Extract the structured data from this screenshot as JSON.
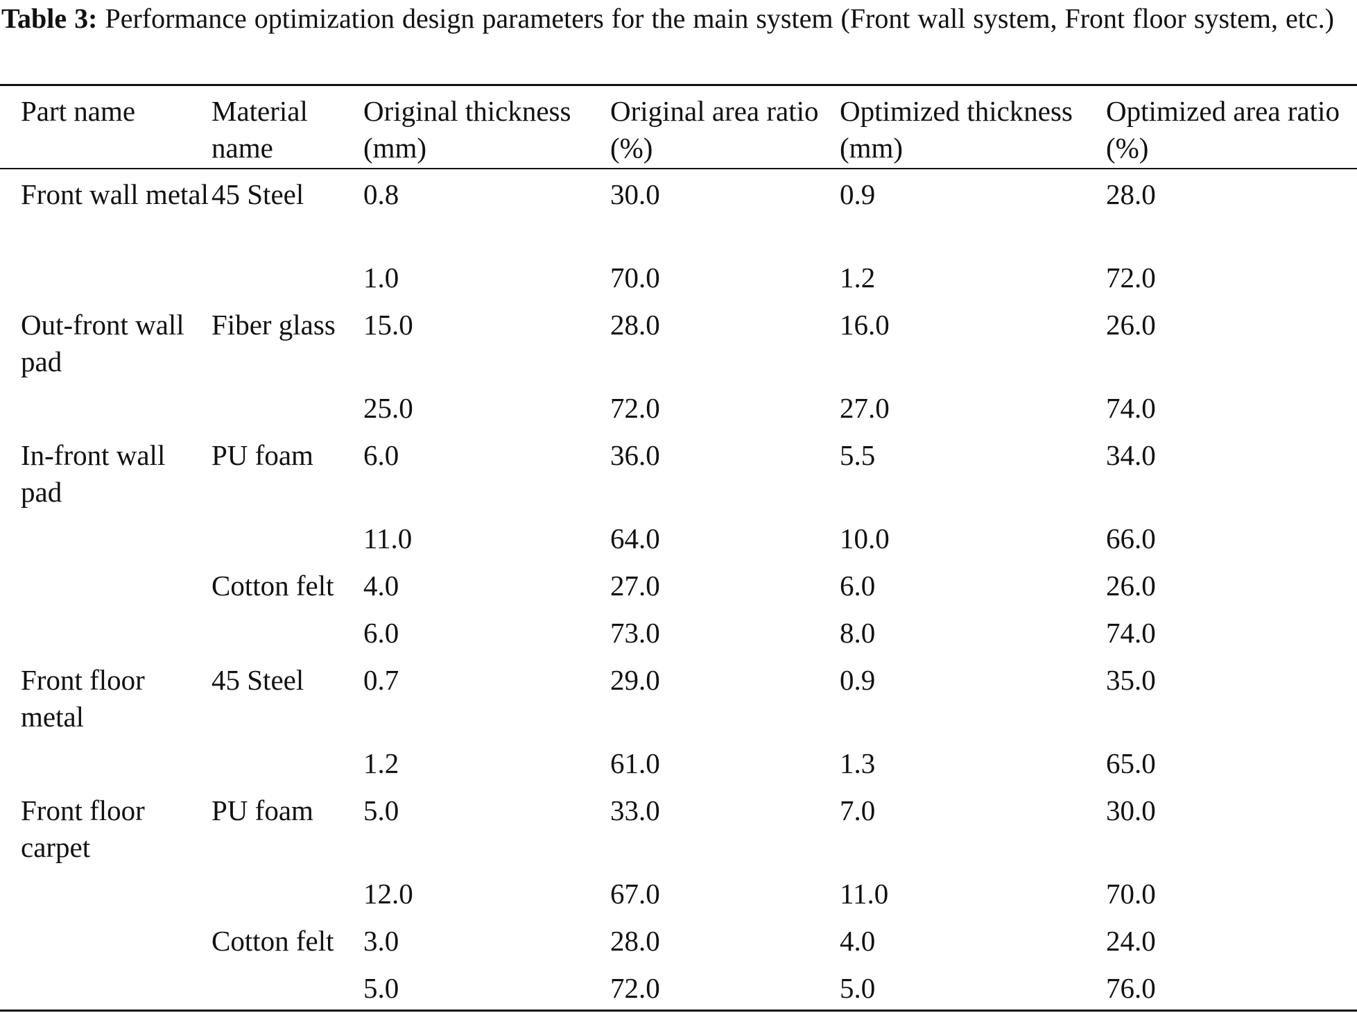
{
  "caption": {
    "label": "Table 3:",
    "text": " Performance optimization design parameters for the main system (Front wall system, Front floor system, etc.)"
  },
  "table": {
    "headers": [
      "Part name",
      "Material name",
      "Original thickness (mm)",
      "Original area ratio (%)",
      "Optimized thickness (mm)",
      "Optimized area ratio (%)"
    ],
    "rows": [
      [
        "Front wall metal",
        "45 Steel",
        "0.8",
        "30.0",
        "0.9",
        "28.0"
      ],
      [
        "",
        "",
        "1.0",
        "70.0",
        "1.2",
        "72.0"
      ],
      [
        "Out-front wall pad",
        "Fiber glass",
        "15.0",
        "28.0",
        "16.0",
        "26.0"
      ],
      [
        "",
        "",
        "25.0",
        "72.0",
        "27.0",
        "74.0"
      ],
      [
        "In-front wall pad",
        "PU foam",
        "6.0",
        "36.0",
        "5.5",
        "34.0"
      ],
      [
        "",
        "",
        "11.0",
        "64.0",
        "10.0",
        "66.0"
      ],
      [
        "",
        "Cotton felt",
        "4.0",
        "27.0",
        "6.0",
        "26.0"
      ],
      [
        "",
        "",
        "6.0",
        "73.0",
        "8.0",
        "74.0"
      ],
      [
        "Front floor metal",
        "45 Steel",
        "0.7",
        "29.0",
        "0.9",
        "35.0"
      ],
      [
        "",
        "",
        "1.2",
        "61.0",
        "1.3",
        "65.0"
      ],
      [
        "Front floor carpet",
        "PU foam",
        "5.0",
        "33.0",
        "7.0",
        "30.0"
      ],
      [
        "",
        "",
        "12.0",
        "67.0",
        "11.0",
        "70.0"
      ],
      [
        "",
        "Cotton felt",
        "3.0",
        "28.0",
        "4.0",
        "24.0"
      ],
      [
        "",
        "",
        "5.0",
        "72.0",
        "5.0",
        "76.0"
      ]
    ]
  }
}
